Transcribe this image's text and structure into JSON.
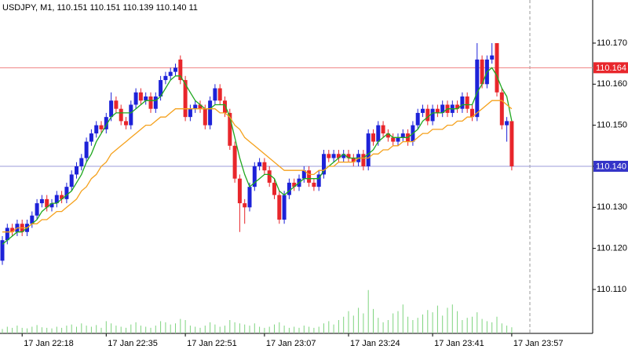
{
  "chart_data": {
    "type": "candlestick",
    "title": "USDJPY, M1, 110.151 110.151 110.139 110.140 11",
    "categories": [
      null,
      null,
      null,
      null,
      "17 Jan 22:18",
      null,
      null,
      null,
      null,
      null,
      null,
      null,
      null,
      null,
      null,
      null,
      null,
      null,
      null,
      null,
      null,
      "17 Jan 22:35",
      null,
      null,
      null,
      null,
      null,
      null,
      null,
      null,
      null,
      null,
      null,
      null,
      null,
      null,
      null,
      "17 Jan 22:51",
      null,
      null,
      null,
      null,
      null,
      null,
      null,
      null,
      null,
      null,
      null,
      null,
      null,
      null,
      null,
      "17 Jan 23:07",
      null,
      null,
      null,
      null,
      null,
      null,
      null,
      null,
      null,
      null,
      null,
      null,
      null,
      null,
      null,
      null,
      "17 Jan 23:24",
      null,
      null,
      null,
      null,
      null,
      null,
      null,
      null,
      null,
      null,
      null,
      null,
      null,
      null,
      null,
      null,
      "17 Jan 23:41",
      null,
      null,
      null,
      null,
      null,
      null,
      null,
      null,
      null,
      null,
      null,
      null,
      null,
      null,
      null,
      "17 Jan 23:57"
    ],
    "open": [
      110.117,
      110.122,
      110.125,
      110.124,
      110.126,
      110.124,
      110.126,
      110.128,
      110.131,
      110.132,
      110.13,
      110.131,
      110.133,
      110.132,
      110.135,
      110.138,
      110.14,
      110.142,
      110.146,
      110.148,
      110.15,
      110.149,
      110.152,
      110.156,
      110.154,
      110.151,
      110.15,
      110.155,
      110.158,
      110.156,
      110.157,
      110.154,
      110.157,
      110.161,
      110.162,
      110.163,
      110.166,
      110.161,
      110.152,
      110.154,
      110.155,
      110.154,
      110.15,
      110.156,
      110.159,
      110.156,
      110.153,
      110.145,
      110.137,
      110.131,
      110.13,
      110.135,
      110.14,
      110.141,
      110.139,
      110.136,
      110.133,
      110.127,
      110.133,
      110.136,
      110.135,
      110.137,
      110.139,
      110.136,
      110.135,
      110.138,
      110.143,
      110.142,
      110.143,
      110.142,
      110.143,
      110.142,
      110.141,
      110.143,
      110.14,
      110.148,
      110.146,
      110.15,
      110.148,
      110.147,
      110.146,
      110.147,
      110.148,
      110.146,
      110.15,
      110.153,
      110.154,
      110.151,
      110.154,
      110.153,
      110.155,
      110.153,
      110.155,
      110.154,
      110.157,
      110.154,
      110.152,
      110.166,
      110.16,
      110.166,
      110.17,
      110.158,
      110.15,
      110.151
    ],
    "high": [
      110.123,
      110.126,
      110.126,
      110.127,
      110.127,
      110.127,
      110.129,
      110.132,
      110.133,
      110.133,
      110.132,
      110.134,
      110.134,
      110.136,
      110.139,
      110.141,
      110.143,
      110.147,
      110.149,
      110.151,
      110.151,
      110.153,
      110.158,
      110.157,
      110.155,
      110.152,
      110.156,
      110.159,
      110.159,
      110.158,
      110.158,
      110.158,
      110.162,
      110.163,
      110.164,
      110.165,
      110.167,
      110.162,
      110.155,
      110.156,
      110.156,
      110.155,
      110.157,
      110.16,
      110.16,
      110.157,
      110.154,
      110.146,
      110.138,
      110.132,
      110.136,
      110.141,
      110.142,
      110.142,
      110.14,
      110.137,
      110.134,
      110.134,
      110.137,
      110.137,
      110.138,
      110.14,
      110.14,
      110.137,
      110.139,
      110.144,
      110.144,
      110.144,
      110.144,
      110.144,
      110.144,
      110.143,
      110.144,
      110.144,
      110.149,
      110.149,
      110.151,
      110.151,
      110.149,
      110.148,
      110.148,
      110.149,
      110.149,
      110.151,
      110.154,
      110.155,
      110.155,
      110.155,
      110.155,
      110.156,
      110.156,
      110.156,
      110.156,
      110.158,
      110.158,
      110.155,
      110.17,
      110.167,
      110.167,
      110.17,
      110.17,
      110.159,
      110.152,
      110.151
    ],
    "low": [
      110.116,
      110.121,
      110.123,
      110.123,
      110.123,
      110.123,
      110.125,
      110.127,
      110.13,
      110.129,
      110.129,
      110.13,
      110.131,
      110.131,
      110.134,
      110.137,
      110.139,
      110.141,
      110.145,
      110.147,
      110.148,
      110.148,
      110.151,
      110.153,
      110.15,
      110.149,
      110.149,
      110.154,
      110.155,
      110.155,
      110.153,
      110.153,
      110.156,
      110.16,
      110.161,
      110.162,
      110.16,
      110.151,
      110.151,
      110.153,
      110.153,
      110.149,
      110.149,
      110.155,
      110.155,
      110.152,
      110.144,
      110.136,
      110.124,
      110.126,
      110.129,
      110.134,
      110.139,
      110.138,
      110.135,
      110.132,
      110.126,
      110.126,
      110.132,
      110.134,
      110.134,
      110.136,
      110.135,
      110.134,
      110.134,
      110.137,
      110.141,
      110.141,
      110.141,
      110.141,
      110.141,
      110.14,
      110.14,
      110.139,
      110.139,
      110.145,
      110.145,
      110.147,
      110.146,
      110.145,
      110.145,
      110.146,
      110.145,
      110.145,
      110.149,
      110.152,
      110.15,
      110.15,
      110.152,
      110.152,
      110.152,
      110.152,
      110.153,
      110.153,
      110.153,
      110.151,
      110.151,
      110.159,
      110.159,
      110.165,
      110.157,
      110.149,
      110.146,
      110.139
    ],
    "close": [
      110.122,
      110.125,
      110.124,
      110.126,
      110.124,
      110.126,
      110.128,
      110.131,
      110.132,
      110.13,
      110.131,
      110.133,
      110.132,
      110.135,
      110.138,
      110.14,
      110.142,
      110.146,
      110.148,
      110.15,
      110.149,
      110.152,
      110.156,
      110.154,
      110.151,
      110.15,
      110.155,
      110.158,
      110.156,
      110.157,
      110.154,
      110.157,
      110.161,
      110.162,
      110.163,
      110.164,
      110.161,
      110.152,
      110.154,
      110.155,
      110.154,
      110.15,
      110.156,
      110.159,
      110.156,
      110.153,
      110.145,
      110.137,
      110.131,
      110.13,
      110.135,
      110.14,
      110.141,
      110.139,
      110.136,
      110.133,
      110.127,
      110.133,
      110.136,
      110.135,
      110.137,
      110.139,
      110.136,
      110.135,
      110.138,
      110.143,
      110.142,
      110.143,
      110.142,
      110.143,
      110.142,
      110.141,
      110.143,
      110.14,
      110.148,
      110.146,
      110.15,
      110.148,
      110.147,
      110.146,
      110.147,
      110.148,
      110.146,
      110.15,
      110.153,
      110.154,
      110.151,
      110.154,
      110.153,
      110.155,
      110.153,
      110.155,
      110.154,
      110.157,
      110.154,
      110.152,
      110.166,
      110.16,
      110.166,
      110.167,
      110.158,
      110.15,
      110.151,
      110.14
    ],
    "volume": [
      8,
      12,
      10,
      14,
      10,
      9,
      12,
      15,
      11,
      10,
      9,
      12,
      10,
      14,
      16,
      12,
      18,
      14,
      12,
      15,
      10,
      22,
      18,
      14,
      12,
      10,
      16,
      20,
      14,
      12,
      10,
      14,
      22,
      20,
      16,
      18,
      26,
      24,
      14,
      12,
      10,
      14,
      20,
      16,
      12,
      14,
      24,
      20,
      18,
      16,
      14,
      18,
      12,
      10,
      12,
      16,
      20,
      14,
      10,
      12,
      10,
      14,
      12,
      10,
      12,
      18,
      22,
      16,
      24,
      30,
      40,
      32,
      46,
      36,
      78,
      44,
      28,
      20,
      24,
      36,
      40,
      52,
      30,
      24,
      28,
      34,
      42,
      38,
      50,
      32,
      46,
      52,
      40,
      24,
      28,
      30,
      38,
      26,
      22,
      20,
      30,
      18,
      14,
      11
    ],
    "ma": [
      {
        "color": "#1fa81f",
        "values": [
          110.121,
          110.122,
          110.123,
          110.124,
          110.124,
          110.125,
          110.126,
          110.127,
          110.129,
          110.13,
          110.131,
          110.131,
          110.132,
          110.133,
          110.134,
          110.136,
          110.138,
          110.141,
          110.143,
          110.146,
          110.148,
          110.15,
          110.152,
          110.153,
          110.153,
          110.153,
          110.153,
          110.154,
          110.155,
          110.156,
          110.156,
          110.156,
          110.157,
          110.159,
          110.161,
          110.162,
          110.162,
          110.16,
          110.158,
          110.156,
          110.155,
          110.154,
          110.154,
          110.155,
          110.155,
          110.155,
          110.152,
          110.147,
          110.142,
          110.138,
          110.135,
          110.136,
          110.137,
          110.138,
          110.138,
          110.137,
          110.134,
          110.133,
          110.134,
          110.135,
          110.136,
          110.137,
          110.137,
          110.137,
          110.137,
          110.139,
          110.14,
          110.141,
          110.142,
          110.143,
          110.142,
          110.142,
          110.142,
          110.142,
          110.143,
          110.144,
          110.146,
          110.147,
          110.148,
          110.147,
          110.147,
          110.147,
          110.147,
          110.148,
          110.149,
          110.151,
          110.152,
          110.153,
          110.153,
          110.153,
          110.154,
          110.154,
          110.154,
          110.155,
          110.155,
          110.155,
          110.158,
          110.16,
          110.163,
          110.164,
          110.162,
          110.159,
          110.157,
          110.151
        ]
      },
      {
        "color": "#f5a11c",
        "values": [
          110.124,
          110.124,
          110.124,
          110.125,
          110.125,
          110.125,
          110.126,
          110.126,
          110.127,
          110.127,
          110.128,
          110.129,
          110.129,
          110.13,
          110.131,
          110.132,
          110.134,
          110.135,
          110.137,
          110.138,
          110.14,
          110.141,
          110.143,
          110.144,
          110.145,
          110.146,
          110.147,
          110.148,
          110.149,
          110.15,
          110.15,
          110.151,
          110.152,
          110.152,
          110.153,
          110.154,
          110.154,
          110.154,
          110.154,
          110.154,
          110.154,
          110.154,
          110.154,
          110.154,
          110.153,
          110.153,
          110.152,
          110.15,
          110.149,
          110.147,
          110.146,
          110.145,
          110.144,
          110.143,
          110.142,
          110.141,
          110.14,
          110.139,
          110.139,
          110.139,
          110.139,
          110.139,
          110.138,
          110.138,
          110.139,
          110.139,
          110.14,
          110.14,
          110.141,
          110.141,
          110.141,
          110.141,
          110.142,
          110.142,
          110.142,
          110.143,
          110.143,
          110.144,
          110.144,
          110.145,
          110.145,
          110.146,
          110.146,
          110.146,
          110.147,
          110.148,
          110.148,
          110.149,
          110.149,
          110.149,
          110.15,
          110.15,
          110.151,
          110.151,
          110.152,
          110.152,
          110.153,
          110.154,
          110.155,
          110.156,
          110.156,
          110.156,
          110.155,
          110.154
        ]
      }
    ],
    "up_color": "#1d22d8",
    "down_color": "#e8262b",
    "volume_color": "#7fd47f",
    "ylim": [
      110.0993,
      110.1805
    ],
    "yticks": [
      {
        "value": 110.17,
        "label": "110.170"
      },
      {
        "value": 110.16,
        "label": "110.160"
      },
      {
        "value": 110.15,
        "label": "110.150"
      },
      {
        "value": 110.14,
        "label": "110.140"
      },
      {
        "value": 110.13,
        "label": "110.130"
      },
      {
        "value": 110.12,
        "label": "110.120"
      },
      {
        "value": 110.11,
        "label": "110.110"
      }
    ],
    "volume_ylim": [
      0,
      600
    ],
    "hlines": [
      {
        "value": 110.164,
        "color": "#f08080",
        "box_color": "#e8262b"
      },
      {
        "value": 110.14,
        "label": "110.140",
        "color": "#9b9bd8",
        "box_color": "#3434c8"
      }
    ]
  }
}
